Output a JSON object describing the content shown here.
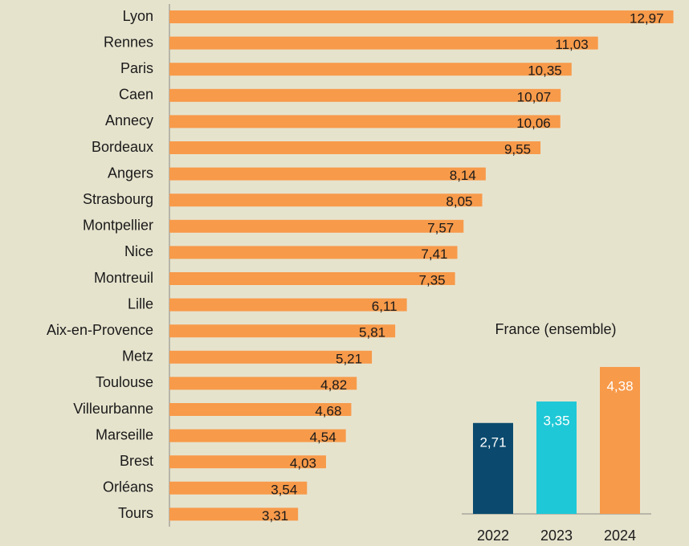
{
  "chart_data": [
    {
      "type": "bar",
      "orientation": "horizontal",
      "categories": [
        "Lyon",
        "Rennes",
        "Paris",
        "Caen",
        "Annecy",
        "Bordeaux",
        "Angers",
        "Strasbourg",
        "Montpellier",
        "Nice",
        "Montreuil",
        "Lille",
        "Aix-en-Provence",
        "Metz",
        "Toulouse",
        "Villeurbanne",
        "Marseille",
        "Brest",
        "Orléans",
        "Tours"
      ],
      "values": [
        12.97,
        11.03,
        10.35,
        10.07,
        10.06,
        9.55,
        8.14,
        8.05,
        7.57,
        7.41,
        7.35,
        6.11,
        5.81,
        5.21,
        4.82,
        4.68,
        4.54,
        4.03,
        3.54,
        3.31
      ],
      "value_labels": [
        "12,97",
        "11,03",
        "10,35",
        "10,07",
        "10,06",
        "9,55",
        "8,14",
        "8,05",
        "7,57",
        "7,41",
        "7,35",
        "6,11",
        "5,81",
        "5,21",
        "4,82",
        "4,68",
        "4,54",
        "4,03",
        "3,54",
        "3,31"
      ],
      "color": "#f79a4a",
      "xlim": [
        0,
        13
      ]
    },
    {
      "type": "bar",
      "title": "France (ensemble)",
      "categories": [
        "2022",
        "2023",
        "2024"
      ],
      "values": [
        2.71,
        3.35,
        4.38
      ],
      "value_labels": [
        "2,71",
        "3,35",
        "4,38"
      ],
      "colors": [
        "#0b4a6e",
        "#1fc8d6",
        "#f79a4a"
      ],
      "ylim": [
        0,
        4.5
      ]
    }
  ]
}
